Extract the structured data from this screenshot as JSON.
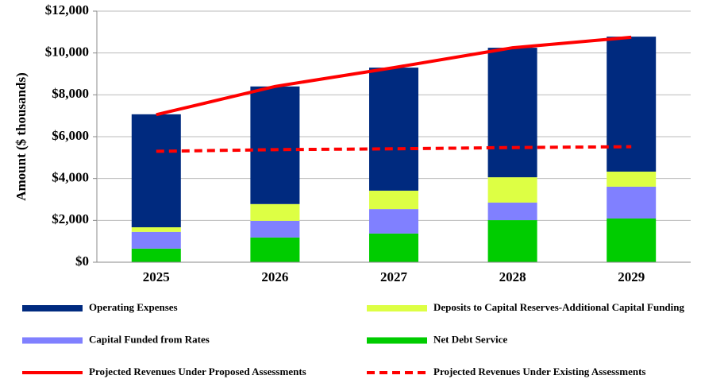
{
  "chart_data": {
    "type": "bar",
    "stacked": true,
    "ylabel": "Amount ($ thousands)",
    "categories": [
      "2025",
      "2026",
      "2027",
      "2028",
      "2029"
    ],
    "ylim": [
      0,
      12000
    ],
    "yticks": [
      {
        "value": 0,
        "label": "$0"
      },
      {
        "value": 2000,
        "label": "$2,000"
      },
      {
        "value": 4000,
        "label": "$4,000"
      },
      {
        "value": 6000,
        "label": "$6,000"
      },
      {
        "value": 8000,
        "label": "$8,000"
      },
      {
        "value": 10000,
        "label": "$10,000"
      },
      {
        "value": 12000,
        "label": "$12,000"
      }
    ],
    "series": [
      {
        "name": "Operating Expenses",
        "color": "#002a7f",
        "type": "bar",
        "values": [
          5400,
          5620,
          5880,
          6190,
          6450
        ]
      },
      {
        "name": "Deposits to Capital Reserves-Additional Capital Funding",
        "color": "#ddff44",
        "type": "bar",
        "values": [
          220,
          800,
          880,
          1210,
          720
        ]
      },
      {
        "name": "Capital Funded from Rates",
        "color": "#8080ff",
        "type": "bar",
        "values": [
          800,
          800,
          1170,
          840,
          1520
        ]
      },
      {
        "name": "Net Debt Service",
        "color": "#00cc00",
        "type": "bar",
        "values": [
          650,
          1180,
          1370,
          2010,
          2090
        ]
      },
      {
        "name": "Projected Revenues Under Proposed Assessments",
        "color": "#ff0000",
        "type": "line",
        "dashed": false,
        "values": [
          7050,
          8400,
          9300,
          10250,
          10750
        ]
      },
      {
        "name": "Projected Revenues Under Existing Assessments",
        "color": "#ff0000",
        "type": "line",
        "dashed": true,
        "values": [
          5300,
          5380,
          5420,
          5480,
          5520
        ]
      }
    ]
  }
}
